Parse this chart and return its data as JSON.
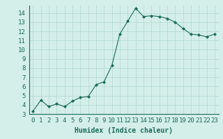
{
  "x": [
    0,
    1,
    2,
    3,
    4,
    5,
    6,
    7,
    8,
    9,
    10,
    11,
    12,
    13,
    14,
    15,
    16,
    17,
    18,
    19,
    20,
    21,
    22,
    23
  ],
  "y": [
    3.3,
    4.5,
    3.8,
    4.1,
    3.8,
    4.4,
    4.8,
    4.9,
    6.2,
    6.5,
    8.3,
    11.7,
    13.1,
    14.5,
    13.6,
    13.7,
    13.6,
    13.4,
    13.0,
    12.3,
    11.7,
    11.6,
    11.4,
    11.7
  ],
  "xlabel": "Humidex (Indice chaleur)",
  "ylim": [
    3,
    14.8
  ],
  "xlim": [
    -0.5,
    23.5
  ],
  "yticks": [
    3,
    4,
    5,
    6,
    7,
    8,
    9,
    10,
    11,
    12,
    13,
    14
  ],
  "xticks": [
    0,
    1,
    2,
    3,
    4,
    5,
    6,
    7,
    8,
    9,
    10,
    11,
    12,
    13,
    14,
    15,
    16,
    17,
    18,
    19,
    20,
    21,
    22,
    23
  ],
  "line_color": "#1a6b5a",
  "marker": "D",
  "marker_size": 2.0,
  "bg_color": "#d4eeea",
  "grid_color": "#b0d8d2",
  "xlabel_fontsize": 7,
  "tick_fontsize": 6.5
}
